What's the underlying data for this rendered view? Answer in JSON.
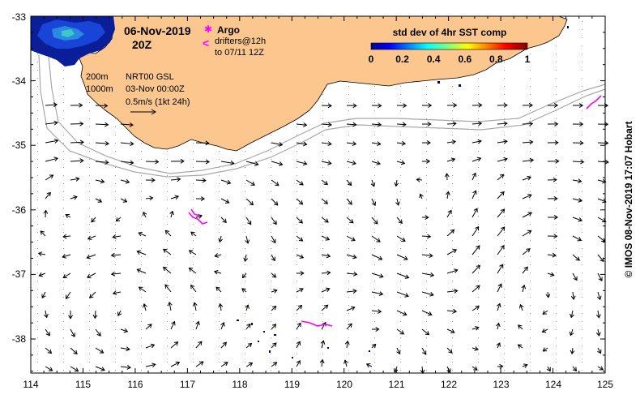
{
  "header": {
    "date": "06-Nov-2019",
    "time": "20Z"
  },
  "legend": {
    "argo_label": "Argo",
    "drifters_label": "drifters@12h",
    "drifters_to": "to 07/11 12Z",
    "argo_symbol": "✱",
    "drifter_symbol": "<"
  },
  "isobaths": {
    "shallow": "200m",
    "deep": "1000m"
  },
  "product": {
    "name": "NRT00 GSL",
    "datetime": "03-Nov 00:00Z",
    "scale": "0.5m/s (1kt 24h)"
  },
  "colorbar": {
    "title": "std dev of 4hr SST comp",
    "ticks": [
      "0",
      "0.2",
      "0.4",
      "0.6",
      "0.8",
      "1"
    ]
  },
  "axes": {
    "x_ticks": [
      "114",
      "115",
      "116",
      "117",
      "118",
      "119",
      "120",
      "121",
      "122",
      "123",
      "124",
      "125"
    ],
    "y_ticks": [
      "-33",
      "-34",
      "-35",
      "-36",
      "-37",
      "-38"
    ]
  },
  "credit": "© IMOS 08-Nov-2019 17:07 Hobart",
  "colors": {
    "land": "#fcc68f",
    "argo": "#ff00ff",
    "isobath": "#a8a8a8",
    "sst_low": "#00008b",
    "sst_mid": "#00c8c8"
  }
}
